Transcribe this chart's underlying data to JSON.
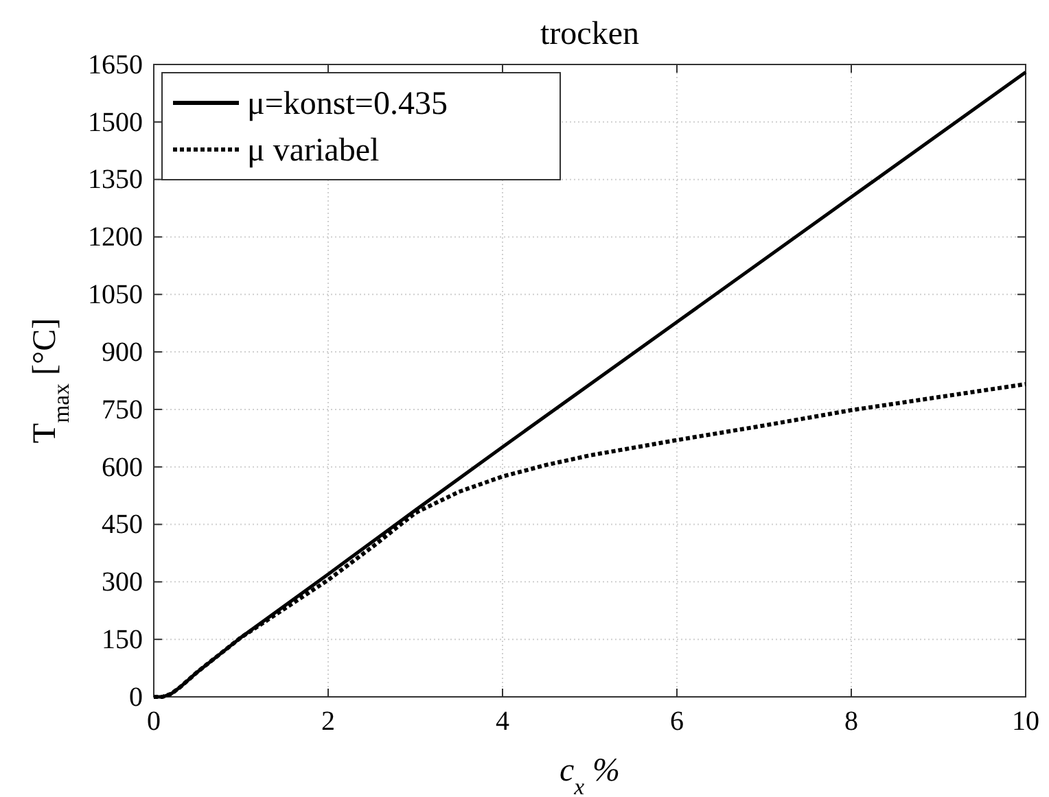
{
  "chart_data": {
    "type": "line",
    "title": "trocken",
    "xlabel": "c$_{x}$ %",
    "ylabel": "T$_{max}$ [°C]",
    "xlim": [
      0,
      10
    ],
    "xticks": [
      0,
      2,
      4,
      6,
      8,
      10
    ],
    "ylim": [
      0,
      1650
    ],
    "yticks": [
      0,
      150,
      300,
      450,
      600,
      750,
      900,
      1050,
      1200,
      1350,
      1500,
      1650
    ],
    "grid": true,
    "legend": "top left",
    "series": [
      {
        "name": "μ=konst=0.435",
        "color": "#000000",
        "line_style": "solid",
        "x": [
          0,
          0.1,
          0.2,
          0.3,
          0.5,
          1,
          2,
          3,
          4,
          6,
          8,
          10
        ],
        "values": [
          0,
          0,
          8,
          25,
          65,
          155,
          320,
          487,
          652,
          978,
          1304,
          1630
        ]
      },
      {
        "name": "μ variabel",
        "color": "#000000",
        "line_style": "dotted",
        "x": [
          0,
          0.1,
          0.2,
          0.3,
          0.5,
          1,
          1.5,
          2,
          2.5,
          3,
          3.5,
          4,
          4.5,
          5,
          6,
          7,
          8,
          9,
          10
        ],
        "values": [
          0,
          0,
          8,
          25,
          65,
          155,
          230,
          305,
          390,
          480,
          535,
          575,
          605,
          630,
          670,
          708,
          748,
          782,
          816
        ]
      }
    ]
  }
}
